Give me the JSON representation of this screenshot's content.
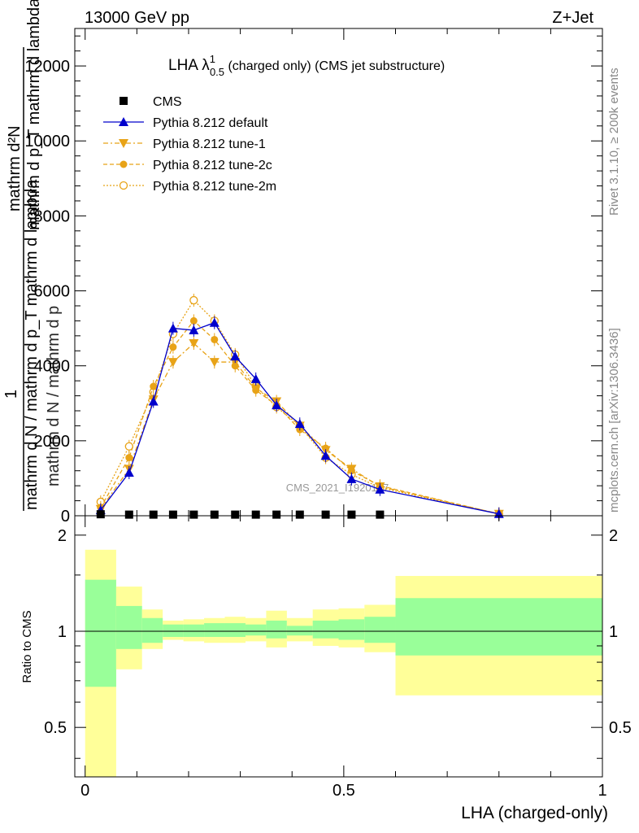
{
  "header": {
    "left": "13000 GeV pp",
    "right": "Z+Jet"
  },
  "side_labels": {
    "rivet": "Rivet 3.1.10, ≥ 200k events",
    "mcplots": "mcplots.cern.ch [arXiv:1306.3436]"
  },
  "watermark": "CMS_2021_I1920187",
  "colors": {
    "cms": "#000000",
    "default": "#0000cc",
    "tunes": "#e8a317",
    "band_inner": "#99ff99",
    "band_outer": "#ffff99"
  },
  "chart_data": [
    {
      "type": "line",
      "title_main": "LHA λ",
      "title_sup": "1",
      "title_sub": "0.5",
      "title_rest": " (charged only) (CMS jet substructure)",
      "ylabel_top": "mathrm d²N",
      "ylabel_bottom": "mathrm d p_T mathrm d lambda",
      "ylabel_bottom_sub": "T",
      "ylabel_one": "1",
      "ylabel_frac_top": "mathrm d N / mathrm d p",
      "ylabel_frac_bottom": "mathrm d N / mathrm d p_T mathrm d lambda",
      "xlim": [
        -0.02,
        1.0
      ],
      "ylim": [
        0,
        13000
      ],
      "x_ticks": [
        0,
        0.5,
        1
      ],
      "x_tick_labels": [
        "0",
        "0.5",
        "1"
      ],
      "y_ticks": [
        0,
        2000,
        4000,
        6000,
        8000,
        10000,
        12000
      ],
      "y_tick_labels": [
        "0",
        "2000",
        "4000",
        "6000",
        "8000",
        "10000",
        "12000"
      ],
      "legend": [
        {
          "key": "cms",
          "label": "CMS"
        },
        {
          "key": "default",
          "label": "Pythia 8.212 default"
        },
        {
          "key": "tune1",
          "label": "Pythia 8.212 tune-1"
        },
        {
          "key": "tune2c",
          "label": "Pythia 8.212 tune-2c"
        },
        {
          "key": "tune2m",
          "label": "Pythia 8.212 tune-2m"
        }
      ],
      "series": [
        {
          "key": "cms",
          "name": "CMS",
          "x": [
            0.03,
            0.085,
            0.132,
            0.17,
            0.21,
            0.25,
            0.29,
            0.33,
            0.37,
            0.415,
            0.465,
            0.515,
            0.57
          ],
          "values": [
            40,
            30,
            30,
            30,
            30,
            30,
            30,
            30,
            30,
            30,
            30,
            30,
            30
          ]
        },
        {
          "key": "default",
          "name": "Pythia 8.212 default",
          "x": [
            0.03,
            0.085,
            0.132,
            0.17,
            0.21,
            0.25,
            0.29,
            0.33,
            0.37,
            0.415,
            0.465,
            0.515,
            0.57,
            0.8
          ],
          "values": [
            150,
            1150,
            3050,
            5000,
            4950,
            5150,
            4250,
            3650,
            2950,
            2450,
            1600,
            980,
            700,
            50
          ]
        },
        {
          "key": "tune1",
          "name": "Pythia 8.212 tune-1",
          "x": [
            0.03,
            0.085,
            0.132,
            0.17,
            0.21,
            0.25,
            0.29,
            0.33,
            0.37,
            0.415,
            0.465,
            0.515,
            0.57,
            0.8
          ],
          "values": [
            180,
            1250,
            3100,
            4100,
            4600,
            4100,
            4100,
            3400,
            3050,
            2400,
            1750,
            1250,
            780,
            50
          ]
        },
        {
          "key": "tune2c",
          "name": "Pythia 8.212 tune-2c",
          "x": [
            0.03,
            0.085,
            0.132,
            0.17,
            0.21,
            0.25,
            0.29,
            0.33,
            0.37,
            0.415,
            0.465,
            0.515,
            0.57,
            0.8
          ],
          "values": [
            220,
            1550,
            3450,
            4500,
            5200,
            4700,
            4000,
            3350,
            2950,
            2300,
            1800,
            1200,
            800,
            50
          ]
        },
        {
          "key": "tune2m",
          "name": "Pythia 8.212 tune-2m",
          "x": [
            0.03,
            0.085,
            0.132,
            0.17,
            0.21,
            0.25,
            0.29,
            0.33,
            0.37,
            0.415,
            0.465,
            0.515,
            0.57,
            0.8
          ],
          "values": [
            370,
            1850,
            3300,
            4850,
            5750,
            5200,
            4300,
            3450,
            2900,
            2400,
            1550,
            1100,
            750,
            50
          ]
        }
      ]
    },
    {
      "type": "area",
      "ylabel": "Ratio to CMS",
      "xlabel": "LHA (charged-only)",
      "xlim": [
        -0.02,
        1.0
      ],
      "ylim": [
        0.35,
        2.3
      ],
      "y_ticks": [
        0.5,
        1,
        2
      ],
      "y_tick_labels": [
        "0.5",
        "1",
        "2"
      ],
      "reference_line": 1,
      "bins": [
        {
          "x0": 0.0,
          "x1": 0.06,
          "inner": [
            0.67,
            1.45
          ],
          "outer": [
            0.35,
            1.8
          ]
        },
        {
          "x0": 0.06,
          "x1": 0.11,
          "inner": [
            0.88,
            1.2
          ],
          "outer": [
            0.76,
            1.38
          ]
        },
        {
          "x0": 0.11,
          "x1": 0.15,
          "inner": [
            0.92,
            1.1
          ],
          "outer": [
            0.88,
            1.17
          ]
        },
        {
          "x0": 0.15,
          "x1": 0.19,
          "inner": [
            0.96,
            1.05
          ],
          "outer": [
            0.94,
            1.08
          ]
        },
        {
          "x0": 0.19,
          "x1": 0.23,
          "inner": [
            0.96,
            1.05
          ],
          "outer": [
            0.93,
            1.09
          ]
        },
        {
          "x0": 0.23,
          "x1": 0.27,
          "inner": [
            0.96,
            1.06
          ],
          "outer": [
            0.92,
            1.1
          ]
        },
        {
          "x0": 0.27,
          "x1": 0.31,
          "inner": [
            0.96,
            1.06
          ],
          "outer": [
            0.92,
            1.11
          ]
        },
        {
          "x0": 0.31,
          "x1": 0.35,
          "inner": [
            0.97,
            1.05
          ],
          "outer": [
            0.93,
            1.1
          ]
        },
        {
          "x0": 0.35,
          "x1": 0.39,
          "inner": [
            0.95,
            1.08
          ],
          "outer": [
            0.89,
            1.16
          ]
        },
        {
          "x0": 0.39,
          "x1": 0.44,
          "inner": [
            0.97,
            1.04
          ],
          "outer": [
            0.93,
            1.1
          ]
        },
        {
          "x0": 0.44,
          "x1": 0.49,
          "inner": [
            0.95,
            1.08
          ],
          "outer": [
            0.9,
            1.17
          ]
        },
        {
          "x0": 0.49,
          "x1": 0.54,
          "inner": [
            0.94,
            1.09
          ],
          "outer": [
            0.89,
            1.18
          ]
        },
        {
          "x0": 0.54,
          "x1": 0.6,
          "inner": [
            0.92,
            1.11
          ],
          "outer": [
            0.86,
            1.21
          ]
        },
        {
          "x0": 0.6,
          "x1": 1.0,
          "inner": [
            0.84,
            1.27
          ],
          "outer": [
            0.63,
            1.49
          ]
        }
      ]
    }
  ]
}
